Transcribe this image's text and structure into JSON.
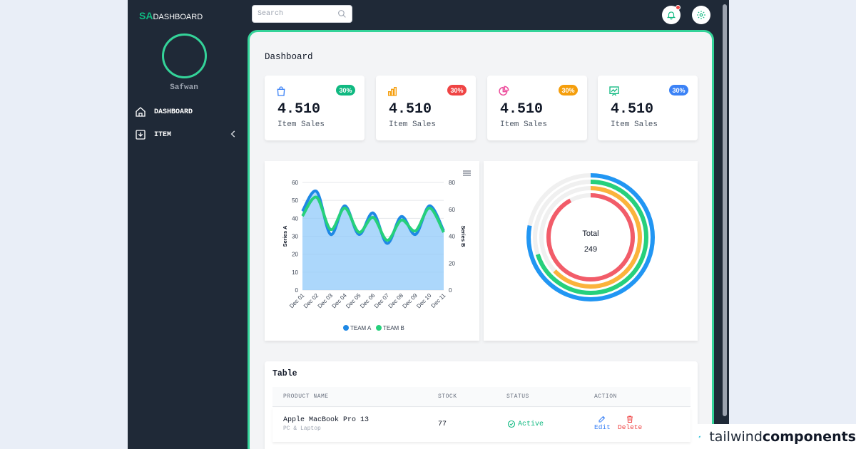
{
  "brand": {
    "abbr": "SA",
    "name": "DASHBOARD"
  },
  "user": {
    "name": "Safwan"
  },
  "nav": [
    {
      "label": "DASHBOARD",
      "icon": "home-icon"
    },
    {
      "label": "ITEM",
      "icon": "download-box-icon"
    }
  ],
  "search": {
    "placeholder": "Search"
  },
  "page": {
    "title": "Dashboard"
  },
  "stats": [
    {
      "value": "4.510",
      "label": "Item Sales",
      "badge": "30%",
      "color": "#10b981",
      "icon": "shopping-bag-icon"
    },
    {
      "value": "4.510",
      "label": "Item Sales",
      "badge": "30%",
      "color": "#ef4444",
      "icon": "bar-chart-icon"
    },
    {
      "value": "4.510",
      "label": "Item Sales",
      "badge": "30%",
      "color": "#f59e0b",
      "icon": "pie-chart-icon"
    },
    {
      "value": "4.510",
      "label": "Item Sales",
      "badge": "30%",
      "color": "#3b82f6",
      "icon": "trend-chart-icon"
    }
  ],
  "chart_data": [
    {
      "type": "area",
      "x": [
        "Dec 01",
        "Dec 02",
        "Dec 03",
        "Dec 04",
        "Dec 05",
        "Dec 06",
        "Dec 07",
        "Dec 08",
        "Dec 09",
        "Dec 10",
        "Dec 11"
      ],
      "series": [
        {
          "name": "TEAM A",
          "values": [
            44,
            55,
            31,
            47,
            31,
            43,
            26,
            41,
            31,
            47,
            33
          ],
          "color": "#1e88e5"
        },
        {
          "name": "TEAM B",
          "values": [
            55,
            69,
            45,
            61,
            43,
            54,
            37,
            52,
            44,
            61,
            43
          ],
          "color": "#26d07c"
        }
      ],
      "ylabel": "Series A",
      "ylabel_right": "Series B",
      "y_ticks": [
        "0",
        "10",
        "20",
        "30",
        "40",
        "50",
        "60"
      ],
      "y_ticks_right": [
        "0",
        "20",
        "40",
        "60",
        "80"
      ],
      "ylim": [
        0,
        60
      ],
      "ylim_right": [
        0,
        80
      ],
      "legend": "bottom",
      "grid": true
    },
    {
      "type": "radialBar",
      "center_label": "Total",
      "center_value": "249",
      "series": [
        {
          "value": 0.78,
          "color": "#2196f3"
        },
        {
          "value": 0.7,
          "color": "#26d07c"
        },
        {
          "value": 0.63,
          "color": "#fbb33c"
        },
        {
          "value": 0.92,
          "color": "#f25c69"
        }
      ]
    }
  ],
  "table": {
    "title": "Table",
    "headers": [
      "PRODUCT NAME",
      "STOCK",
      "STATUS",
      "ACTION"
    ],
    "rows": [
      {
        "name": "Apple MacBook Pro 13",
        "category": "PC & Laptop",
        "stock": "77",
        "status": "Active",
        "edit": "Edit",
        "delete": "Delete"
      }
    ]
  },
  "watermark": {
    "light": "tailwind",
    "bold": "components"
  }
}
